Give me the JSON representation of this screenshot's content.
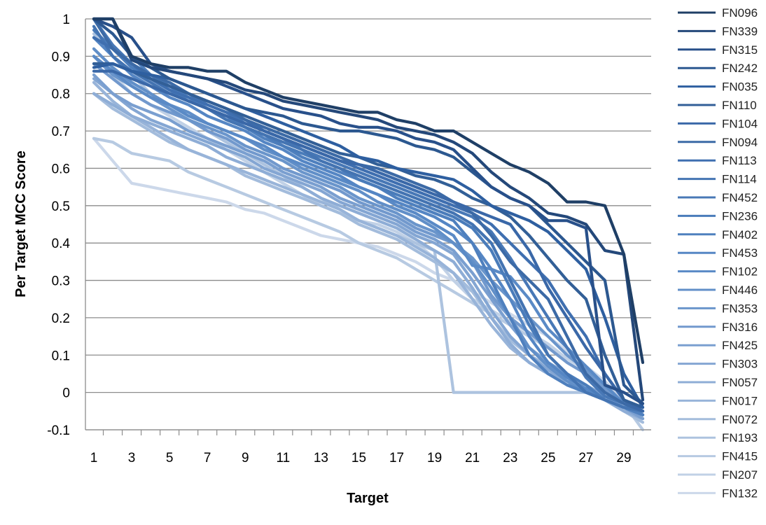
{
  "chart_data": {
    "type": "line",
    "title": "",
    "xlabel": "Target",
    "ylabel": "Per Target MCC Score",
    "xlim": [
      1,
      30
    ],
    "ylim": [
      -0.1,
      1
    ],
    "y_ticks": [
      1,
      0.9,
      0.8,
      0.7,
      0.6,
      0.5,
      0.4,
      0.3,
      0.2,
      0.1,
      0,
      -0.1
    ],
    "x_ticks": [
      1,
      3,
      5,
      7,
      9,
      11,
      13,
      15,
      17,
      19,
      21,
      23,
      25,
      27,
      29
    ],
    "grid": "horizontal",
    "legend_position": "right",
    "x": [
      1,
      2,
      3,
      4,
      5,
      6,
      7,
      8,
      9,
      10,
      11,
      12,
      13,
      14,
      15,
      16,
      17,
      18,
      19,
      20,
      21,
      22,
      23,
      24,
      25,
      26,
      27,
      28,
      29,
      30
    ],
    "series": [
      {
        "name": "FN096",
        "color": "#1f3f66",
        "values": [
          1.0,
          1.0,
          0.9,
          0.88,
          0.87,
          0.87,
          0.86,
          0.86,
          0.83,
          0.81,
          0.79,
          0.78,
          0.77,
          0.76,
          0.75,
          0.75,
          0.73,
          0.72,
          0.7,
          0.7,
          0.67,
          0.64,
          0.61,
          0.59,
          0.56,
          0.51,
          0.51,
          0.5,
          0.37,
          0.08
        ]
      },
      {
        "name": "FN339",
        "color": "#24487a",
        "values": [
          1.0,
          1.0,
          0.89,
          0.87,
          0.86,
          0.85,
          0.84,
          0.83,
          0.81,
          0.8,
          0.78,
          0.77,
          0.76,
          0.75,
          0.74,
          0.73,
          0.71,
          0.7,
          0.69,
          0.67,
          0.64,
          0.59,
          0.55,
          0.52,
          0.48,
          0.47,
          0.45,
          0.38,
          0.37,
          -0.02
        ]
      },
      {
        "name": "FN315",
        "color": "#28508a",
        "values": [
          1.0,
          0.98,
          0.95,
          0.88,
          0.86,
          0.85,
          0.84,
          0.82,
          0.8,
          0.78,
          0.76,
          0.75,
          0.74,
          0.72,
          0.71,
          0.71,
          0.7,
          0.68,
          0.67,
          0.65,
          0.6,
          0.55,
          0.52,
          0.5,
          0.46,
          0.46,
          0.44,
          0.02,
          0.0,
          -0.03
        ]
      },
      {
        "name": "FN242",
        "color": "#2c5890",
        "values": [
          1.0,
          0.96,
          0.9,
          0.87,
          0.84,
          0.82,
          0.8,
          0.78,
          0.76,
          0.75,
          0.74,
          0.72,
          0.71,
          0.7,
          0.7,
          0.69,
          0.68,
          0.66,
          0.65,
          0.63,
          0.59,
          0.55,
          0.52,
          0.5,
          0.45,
          0.4,
          0.35,
          0.3,
          0.02,
          -0.03
        ]
      },
      {
        "name": "FN035",
        "color": "#2e5fa0",
        "values": [
          0.87,
          0.88,
          0.86,
          0.85,
          0.84,
          0.82,
          0.8,
          0.78,
          0.76,
          0.74,
          0.72,
          0.7,
          0.68,
          0.66,
          0.63,
          0.62,
          0.6,
          0.59,
          0.58,
          0.57,
          0.54,
          0.5,
          0.48,
          0.46,
          0.43,
          0.38,
          0.33,
          0.2,
          0.05,
          -0.04
        ]
      },
      {
        "name": "FN110",
        "color": "#325f97",
        "values": [
          0.88,
          0.88,
          0.86,
          0.84,
          0.82,
          0.8,
          0.78,
          0.76,
          0.74,
          0.72,
          0.7,
          0.68,
          0.66,
          0.64,
          0.63,
          0.61,
          0.6,
          0.58,
          0.57,
          0.55,
          0.52,
          0.5,
          0.47,
          0.42,
          0.36,
          0.3,
          0.25,
          0.1,
          -0.02,
          -0.04
        ]
      },
      {
        "name": "FN104",
        "color": "#3a68a8",
        "values": [
          0.86,
          0.86,
          0.84,
          0.82,
          0.8,
          0.78,
          0.76,
          0.74,
          0.72,
          0.7,
          0.68,
          0.66,
          0.64,
          0.62,
          0.61,
          0.59,
          0.57,
          0.55,
          0.53,
          0.51,
          0.49,
          0.47,
          0.45,
          0.38,
          0.28,
          0.2,
          0.12,
          0.05,
          -0.02,
          -0.05
        ]
      },
      {
        "name": "FN094",
        "color": "#3c6aa6",
        "values": [
          1.0,
          0.92,
          0.88,
          0.85,
          0.83,
          0.8,
          0.78,
          0.76,
          0.73,
          0.71,
          0.69,
          0.67,
          0.65,
          0.63,
          0.61,
          0.6,
          0.58,
          0.56,
          0.54,
          0.51,
          0.48,
          0.42,
          0.35,
          0.3,
          0.25,
          0.15,
          0.05,
          0.0,
          -0.03,
          -0.05
        ]
      },
      {
        "name": "FN113",
        "color": "#3f6fb0",
        "values": [
          0.95,
          0.92,
          0.88,
          0.84,
          0.81,
          0.79,
          0.77,
          0.75,
          0.73,
          0.7,
          0.68,
          0.66,
          0.64,
          0.62,
          0.6,
          0.58,
          0.56,
          0.54,
          0.52,
          0.5,
          0.48,
          0.45,
          0.4,
          0.35,
          0.3,
          0.22,
          0.15,
          0.05,
          -0.02,
          -0.05
        ]
      },
      {
        "name": "FN114",
        "color": "#4474b2",
        "values": [
          0.98,
          0.9,
          0.86,
          0.83,
          0.8,
          0.78,
          0.76,
          0.73,
          0.71,
          0.69,
          0.67,
          0.65,
          0.62,
          0.6,
          0.58,
          0.56,
          0.54,
          0.52,
          0.5,
          0.48,
          0.45,
          0.4,
          0.3,
          0.2,
          0.1,
          0.05,
          0.0,
          -0.02,
          -0.04,
          -0.05
        ]
      },
      {
        "name": "FN452",
        "color": "#4878b6",
        "values": [
          1.0,
          0.93,
          0.88,
          0.85,
          0.82,
          0.8,
          0.77,
          0.75,
          0.72,
          0.7,
          0.68,
          0.65,
          0.63,
          0.61,
          0.59,
          0.57,
          0.55,
          0.53,
          0.51,
          0.49,
          0.47,
          0.43,
          0.36,
          0.28,
          0.2,
          0.12,
          0.04,
          -0.01,
          -0.03,
          -0.05
        ]
      },
      {
        "name": "FN236",
        "color": "#4a7cba",
        "values": [
          0.97,
          0.92,
          0.87,
          0.84,
          0.81,
          0.78,
          0.76,
          0.73,
          0.71,
          0.69,
          0.66,
          0.64,
          0.62,
          0.6,
          0.57,
          0.55,
          0.53,
          0.51,
          0.49,
          0.47,
          0.44,
          0.38,
          0.28,
          0.18,
          0.1,
          0.05,
          0.02,
          -0.02,
          -0.04,
          -0.05
        ]
      },
      {
        "name": "FN402",
        "color": "#4f80be",
        "values": [
          1.0,
          1.0,
          0.9,
          0.85,
          0.82,
          0.79,
          0.76,
          0.74,
          0.71,
          0.68,
          0.66,
          0.63,
          0.61,
          0.59,
          0.57,
          0.55,
          0.52,
          0.5,
          0.48,
          0.46,
          0.4,
          0.3,
          0.2,
          0.1,
          0.05,
          0.02,
          0.0,
          -0.02,
          -0.04,
          -0.06
        ]
      },
      {
        "name": "FN453",
        "color": "#5586c4",
        "values": [
          0.95,
          0.9,
          0.85,
          0.82,
          0.79,
          0.77,
          0.74,
          0.72,
          0.7,
          0.67,
          0.65,
          0.62,
          0.6,
          0.58,
          0.55,
          0.53,
          0.51,
          0.49,
          0.47,
          0.44,
          0.4,
          0.33,
          0.25,
          0.15,
          0.08,
          0.04,
          0.01,
          -0.02,
          -0.04,
          -0.06
        ]
      },
      {
        "name": "FN102",
        "color": "#5a8ac6",
        "values": [
          0.9,
          0.86,
          0.82,
          0.79,
          0.77,
          0.74,
          0.72,
          0.7,
          0.68,
          0.66,
          0.63,
          0.61,
          0.59,
          0.57,
          0.55,
          0.53,
          0.5,
          0.48,
          0.45,
          0.42,
          0.34,
          0.33,
          0.31,
          0.25,
          0.17,
          0.12,
          0.07,
          0.02,
          -0.03,
          -0.06
        ]
      },
      {
        "name": "FN446",
        "color": "#618fc8",
        "values": [
          0.92,
          0.87,
          0.83,
          0.8,
          0.77,
          0.75,
          0.72,
          0.7,
          0.68,
          0.65,
          0.63,
          0.6,
          0.58,
          0.56,
          0.54,
          0.51,
          0.49,
          0.47,
          0.44,
          0.4,
          0.35,
          0.28,
          0.2,
          0.12,
          0.07,
          0.03,
          0.0,
          -0.02,
          -0.04,
          -0.06
        ]
      },
      {
        "name": "FN353",
        "color": "#6a95cb",
        "values": [
          0.9,
          0.85,
          0.82,
          0.79,
          0.76,
          0.73,
          0.71,
          0.69,
          0.66,
          0.64,
          0.62,
          0.59,
          0.57,
          0.55,
          0.52,
          0.5,
          0.48,
          0.45,
          0.43,
          0.4,
          0.36,
          0.3,
          0.25,
          0.2,
          0.15,
          0.1,
          0.06,
          0.02,
          -0.03,
          -0.06
        ]
      },
      {
        "name": "FN316",
        "color": "#7299cd",
        "values": [
          0.88,
          0.84,
          0.8,
          0.77,
          0.75,
          0.73,
          0.7,
          0.68,
          0.65,
          0.63,
          0.6,
          0.58,
          0.56,
          0.54,
          0.51,
          0.49,
          0.47,
          0.44,
          0.42,
          0.4,
          0.35,
          0.26,
          0.2,
          0.16,
          0.12,
          0.08,
          0.05,
          0.01,
          -0.03,
          -0.06
        ]
      },
      {
        "name": "FN425",
        "color": "#7a9fd0",
        "values": [
          0.85,
          0.8,
          0.77,
          0.75,
          0.73,
          0.7,
          0.68,
          0.66,
          0.64,
          0.62,
          0.59,
          0.57,
          0.55,
          0.52,
          0.5,
          0.48,
          0.46,
          0.43,
          0.41,
          0.38,
          0.32,
          0.25,
          0.18,
          0.12,
          0.08,
          0.05,
          0.02,
          -0.01,
          -0.04,
          -0.07
        ]
      },
      {
        "name": "FN303",
        "color": "#84a6d3",
        "values": [
          0.84,
          0.8,
          0.76,
          0.73,
          0.71,
          0.69,
          0.67,
          0.65,
          0.63,
          0.6,
          0.58,
          0.56,
          0.54,
          0.51,
          0.49,
          0.47,
          0.45,
          0.42,
          0.4,
          0.37,
          0.3,
          0.22,
          0.15,
          0.1,
          0.06,
          0.03,
          0.01,
          -0.02,
          -0.04,
          -0.07
        ]
      },
      {
        "name": "FN057",
        "color": "#8eadd6",
        "values": [
          0.8,
          0.77,
          0.74,
          0.72,
          0.7,
          0.68,
          0.66,
          0.63,
          0.61,
          0.59,
          0.57,
          0.55,
          0.52,
          0.5,
          0.48,
          0.46,
          0.44,
          0.41,
          0.38,
          0.35,
          0.28,
          0.2,
          0.13,
          0.08,
          0.05,
          0.02,
          0.0,
          -0.02,
          -0.05,
          -0.07
        ]
      },
      {
        "name": "FN017",
        "color": "#98b4d9",
        "values": [
          0.83,
          0.78,
          0.74,
          0.71,
          0.68,
          0.65,
          0.63,
          0.61,
          0.59,
          0.57,
          0.55,
          0.53,
          0.51,
          0.49,
          0.46,
          0.44,
          0.42,
          0.39,
          0.36,
          0.32,
          0.25,
          0.18,
          0.12,
          0.08,
          0.05,
          0.03,
          0.01,
          -0.02,
          -0.05,
          -0.07
        ]
      },
      {
        "name": "FN072",
        "color": "#a3bcdc",
        "values": [
          0.8,
          0.76,
          0.73,
          0.7,
          0.67,
          0.65,
          0.63,
          0.61,
          0.58,
          0.56,
          0.54,
          0.52,
          0.5,
          0.48,
          0.45,
          0.43,
          0.41,
          0.38,
          0.35,
          0.32,
          0.27,
          0.2,
          0.14,
          0.1,
          0.07,
          0.04,
          0.02,
          -0.02,
          -0.05,
          -0.08
        ]
      },
      {
        "name": "FN193",
        "color": "#adc3df",
        "values": [
          0.96,
          0.9,
          0.85,
          0.8,
          0.76,
          0.73,
          0.7,
          0.67,
          0.64,
          0.61,
          0.58,
          0.55,
          0.52,
          0.49,
          0.46,
          0.44,
          0.42,
          0.4,
          0.38,
          0.0,
          0.0,
          0.0,
          0.0,
          0.0,
          0.0,
          0.0,
          0.0,
          -0.01,
          -0.03,
          -0.05
        ]
      },
      {
        "name": "FN415",
        "color": "#b7cae2",
        "values": [
          0.68,
          0.67,
          0.64,
          0.63,
          0.62,
          0.59,
          0.57,
          0.55,
          0.53,
          0.51,
          0.49,
          0.47,
          0.45,
          0.43,
          0.4,
          0.38,
          0.36,
          0.33,
          0.3,
          0.27,
          0.24,
          0.21,
          0.18,
          0.15,
          0.12,
          0.08,
          0.05,
          0.02,
          -0.03,
          -0.1
        ]
      },
      {
        "name": "FN207",
        "color": "#c1d1e6",
        "values": [
          0.9,
          0.85,
          0.8,
          0.77,
          0.74,
          0.71,
          0.68,
          0.65,
          0.62,
          0.59,
          0.56,
          0.53,
          0.5,
          0.48,
          0.46,
          0.45,
          0.43,
          0.4,
          0.36,
          0.3,
          0.25,
          0.22,
          0.19,
          0.16,
          0.13,
          0.09,
          0.06,
          0.02,
          -0.02,
          -0.06
        ]
      },
      {
        "name": "FN132",
        "color": "#ccd8ea",
        "values": [
          0.68,
          0.62,
          0.56,
          0.55,
          0.54,
          0.53,
          0.52,
          0.51,
          0.49,
          0.48,
          0.46,
          0.44,
          0.42,
          0.41,
          0.4,
          0.39,
          0.37,
          0.35,
          0.32,
          0.3,
          0.27,
          0.24,
          0.21,
          0.18,
          0.15,
          0.11,
          0.07,
          0.03,
          -0.02,
          -0.06
        ]
      }
    ]
  }
}
